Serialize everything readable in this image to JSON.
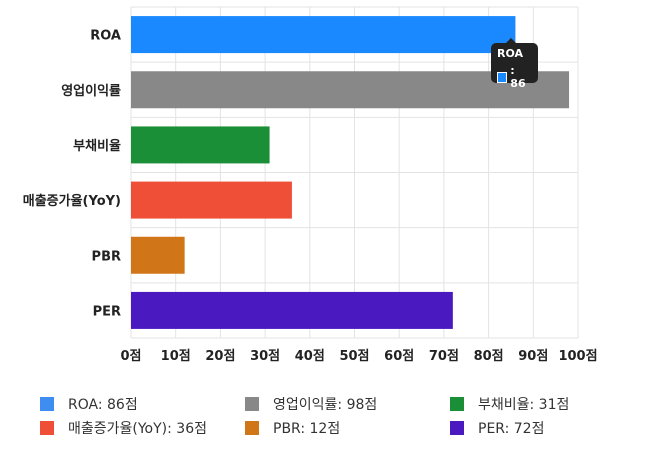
{
  "chart_data": {
    "type": "bar",
    "orientation": "horizontal",
    "categories": [
      "ROA",
      "영업이익률",
      "부채비율",
      "매출증가율(YoY)",
      "PBR",
      "PER"
    ],
    "values": [
      86,
      98,
      31,
      36,
      12,
      72
    ],
    "colors": [
      "#1a88ff",
      "#888888",
      "#1b8f38",
      "#ef4f37",
      "#d17618",
      "#4a19bf"
    ],
    "xlim": [
      0,
      100
    ],
    "xticks": [
      0,
      10,
      20,
      30,
      40,
      50,
      60,
      70,
      80,
      90,
      100
    ],
    "tick_suffix": "점",
    "grid": true,
    "legend_position": "bottom"
  },
  "legend": [
    {
      "label": "ROA: 86점",
      "color": "#3d8ef0"
    },
    {
      "label": "영업이익률: 98점",
      "color": "#888888"
    },
    {
      "label": "부채비율: 31점",
      "color": "#1b8f38"
    },
    {
      "label": "매출증가율(YoY): 36점",
      "color": "#ef4f37"
    },
    {
      "label": "PBR: 12점",
      "color": "#d17618"
    },
    {
      "label": "PER: 72점",
      "color": "#4a19bf"
    }
  ],
  "tooltip": {
    "title": "ROA",
    "value": ": 86",
    "color": "#1a88ff"
  }
}
